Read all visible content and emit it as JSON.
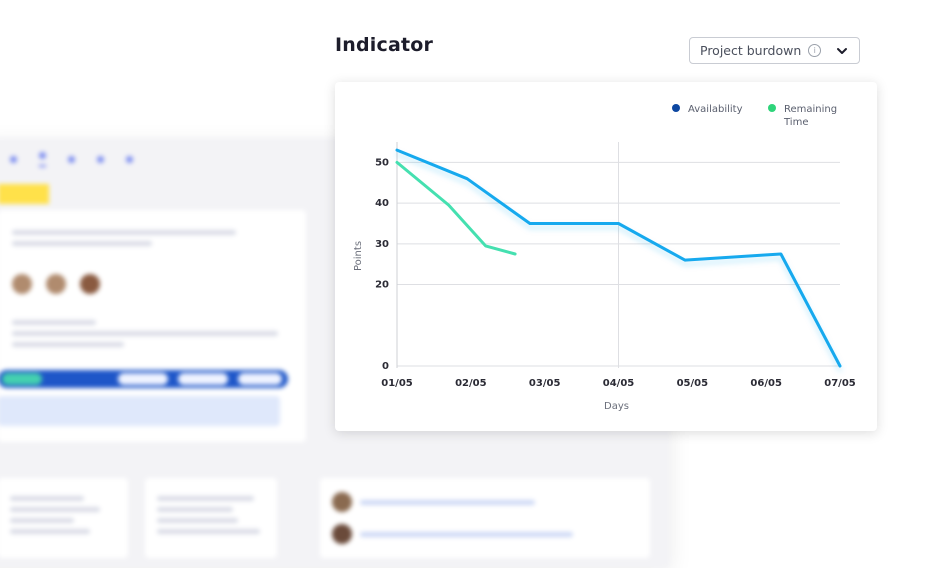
{
  "header": {
    "title": "Indicator",
    "select_value": "Project burdown",
    "info_glyph": "i"
  },
  "chart_data": {
    "type": "line",
    "x": [
      "01/05",
      "02/05",
      "03/05",
      "04/05",
      "05/05",
      "06/05",
      "07/05"
    ],
    "xlabel": "Days",
    "ylabel": "Points",
    "yticks": [
      0,
      20,
      30,
      40,
      50
    ],
    "ylim": [
      0,
      55
    ],
    "grid": true,
    "legend_position": "top-right",
    "series": [
      {
        "name": "Availability",
        "legend_color": "#0d47a1",
        "line_color": "#16a9ee",
        "points": [
          [
            0,
            53
          ],
          [
            0.95,
            46
          ],
          [
            1.8,
            35
          ],
          [
            3,
            35
          ],
          [
            3.9,
            26
          ],
          [
            5.2,
            27.5
          ],
          [
            6,
            0
          ]
        ]
      },
      {
        "name": "Remaining\nTime",
        "legend_color": "#2ed47a",
        "line_color": "#45e0b0",
        "points": [
          [
            0,
            50
          ],
          [
            0.7,
            39.5
          ],
          [
            1.2,
            29.5
          ],
          [
            1.6,
            27.5
          ]
        ]
      }
    ]
  }
}
